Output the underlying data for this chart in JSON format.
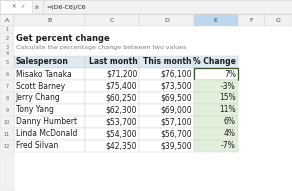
{
  "title": "Get percent change",
  "subtitle": "Calculate the percentage change between two values",
  "formula_bar_text": "=(D6-C6)/C6",
  "col_letters": [
    "A",
    "B",
    "C",
    "D",
    "E",
    "F",
    "G"
  ],
  "col_widths": [
    0.28,
    1.45,
    1.1,
    1.1,
    0.9,
    0.55,
    0.55
  ],
  "headers": [
    "Salesperson",
    "Last month",
    "This month",
    "% Change"
  ],
  "rows": [
    [
      "Misako Tanaka",
      "$71,200",
      "$76,100",
      "7%"
    ],
    [
      "Scott Barney",
      "$75,400",
      "$73,500",
      "-3%"
    ],
    [
      "Jerry Chang",
      "$60,250",
      "$69,500",
      "15%"
    ],
    [
      "Tony Yang",
      "$62,300",
      "$69,000",
      "11%"
    ],
    [
      "Danny Humbert",
      "$53,700",
      "$57,100",
      "6%"
    ],
    [
      "Linda McDonald",
      "$54,300",
      "$56,700",
      "4%"
    ],
    [
      "Fred Silvan",
      "$42,350",
      "$39,500",
      "-7%"
    ]
  ],
  "header_bg": "#DEEAF1",
  "grid_color": "#D0D0D0",
  "bg_color": "#FFFFFF",
  "formula_bar_bg": "#F2F2F2",
  "title_color": "#1F1F1F",
  "subtitle_color": "#808080",
  "col_header_bg": "#F2F2F2",
  "col_header_selected": "#BDD7EE",
  "highlight_border": "#375623",
  "font_size": 5.5
}
